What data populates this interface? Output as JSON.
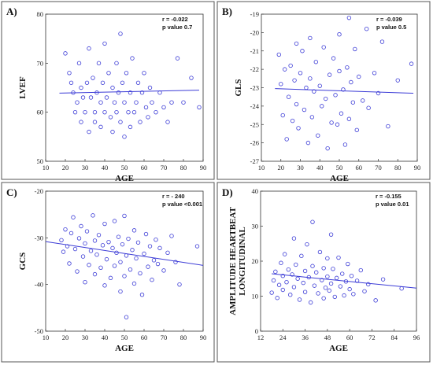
{
  "chart_data": [
    {
      "panel_label": "A)",
      "type": "scatter",
      "xlabel": "AGE",
      "ylabel": "LVEF",
      "xlim": [
        10,
        90
      ],
      "ylim": [
        50,
        80
      ],
      "xticks": [
        10,
        20,
        30,
        40,
        50,
        60,
        70,
        80,
        90
      ],
      "yticks": [
        50,
        60,
        70,
        80
      ],
      "annotation": [
        "r = -0.022",
        "p value 0.7"
      ],
      "trendline": {
        "x": [
          17,
          88
        ],
        "y": [
          63.9,
          64.5
        ]
      },
      "points": [
        [
          20,
          72
        ],
        [
          22,
          68
        ],
        [
          23,
          66
        ],
        [
          24,
          64
        ],
        [
          25,
          60
        ],
        [
          26,
          62
        ],
        [
          27,
          70
        ],
        [
          28,
          65
        ],
        [
          28,
          58
        ],
        [
          29,
          63
        ],
        [
          30,
          60
        ],
        [
          31,
          66
        ],
        [
          32,
          73
        ],
        [
          32,
          56
        ],
        [
          33,
          63
        ],
        [
          34,
          67
        ],
        [
          35,
          60
        ],
        [
          35,
          58
        ],
        [
          36,
          64
        ],
        [
          37,
          70
        ],
        [
          38,
          62
        ],
        [
          38,
          57
        ],
        [
          39,
          66
        ],
        [
          40,
          74
        ],
        [
          40,
          60
        ],
        [
          41,
          63
        ],
        [
          42,
          68
        ],
        [
          43,
          59
        ],
        [
          44,
          65
        ],
        [
          44,
          56
        ],
        [
          45,
          62
        ],
        [
          46,
          70
        ],
        [
          46,
          60
        ],
        [
          47,
          64
        ],
        [
          48,
          76
        ],
        [
          48,
          58
        ],
        [
          49,
          66
        ],
        [
          50,
          62
        ],
        [
          50,
          55
        ],
        [
          51,
          68
        ],
        [
          52,
          60
        ],
        [
          53,
          64
        ],
        [
          53,
          57
        ],
        [
          54,
          71
        ],
        [
          55,
          60
        ],
        [
          56,
          62
        ],
        [
          57,
          66
        ],
        [
          58,
          58
        ],
        [
          59,
          64
        ],
        [
          60,
          68
        ],
        [
          61,
          61
        ],
        [
          62,
          59
        ],
        [
          63,
          65
        ],
        [
          64,
          62
        ],
        [
          66,
          60
        ],
        [
          68,
          64
        ],
        [
          70,
          61
        ],
        [
          72,
          58
        ],
        [
          74,
          62
        ],
        [
          77,
          71
        ],
        [
          80,
          62
        ],
        [
          84,
          67
        ],
        [
          88,
          61
        ]
      ]
    },
    {
      "panel_label": "B)",
      "type": "scatter",
      "xlabel": "AGE",
      "ylabel": "GLS",
      "xlim": [
        10,
        90
      ],
      "ylim": [
        -27,
        -19
      ],
      "xticks": [
        10,
        20,
        30,
        40,
        50,
        60,
        70,
        80,
        90
      ],
      "yticks": [
        -27,
        -26,
        -25,
        -24,
        -23,
        -22,
        -21,
        -20,
        -19
      ],
      "annotation": [
        "r = -0.039",
        "p value 0.5"
      ],
      "trendline": {
        "x": [
          17,
          88
        ],
        "y": [
          -23.05,
          -23.3
        ]
      },
      "points": [
        [
          19,
          -21.2
        ],
        [
          20,
          -22.8
        ],
        [
          21,
          -24.5
        ],
        [
          22,
          -22.0
        ],
        [
          23,
          -25.8
        ],
        [
          24,
          -23.5
        ],
        [
          25,
          -21.8
        ],
        [
          26,
          -24.8
        ],
        [
          27,
          -22.6
        ],
        [
          28,
          -20.6
        ],
        [
          28,
          -23.9
        ],
        [
          29,
          -25.2
        ],
        [
          30,
          -22.2
        ],
        [
          31,
          -21.0
        ],
        [
          32,
          -24.2
        ],
        [
          33,
          -23.0
        ],
        [
          34,
          -26.0
        ],
        [
          35,
          -22.5
        ],
        [
          35,
          -20.3
        ],
        [
          36,
          -24.6
        ],
        [
          37,
          -23.2
        ],
        [
          38,
          -21.6
        ],
        [
          39,
          -25.6
        ],
        [
          40,
          -22.9
        ],
        [
          41,
          -24.0
        ],
        [
          42,
          -20.8
        ],
        [
          43,
          -23.6
        ],
        [
          44,
          -26.3
        ],
        [
          45,
          -22.3
        ],
        [
          46,
          -24.9
        ],
        [
          47,
          -21.4
        ],
        [
          48,
          -23.4
        ],
        [
          49,
          -25.0
        ],
        [
          50,
          -22.1
        ],
        [
          50,
          -20.1
        ],
        [
          51,
          -24.4
        ],
        [
          52,
          -23.1
        ],
        [
          53,
          -26.1
        ],
        [
          54,
          -21.9
        ],
        [
          55,
          -19.2
        ],
        [
          55,
          -24.7
        ],
        [
          56,
          -22.7
        ],
        [
          57,
          -23.8
        ],
        [
          58,
          -20.9
        ],
        [
          59,
          -25.3
        ],
        [
          60,
          -22.4
        ],
        [
          62,
          -23.7
        ],
        [
          64,
          -19.8
        ],
        [
          65,
          -24.1
        ],
        [
          68,
          -22.2
        ],
        [
          70,
          -23.3
        ],
        [
          72,
          -20.5
        ],
        [
          75,
          -25.1
        ],
        [
          80,
          -22.6
        ],
        [
          87,
          -21.7
        ]
      ]
    },
    {
      "panel_label": "C)",
      "type": "scatter",
      "xlabel": "AGE",
      "ylabel": "GCS",
      "xlim": [
        10,
        90
      ],
      "ylim": [
        -50,
        -20
      ],
      "xticks": [
        10,
        20,
        30,
        40,
        50,
        60,
        70,
        80,
        90
      ],
      "yticks": [
        -50,
        -40,
        -30,
        -20
      ],
      "annotation": [
        "r = - 240",
        "p value <0.001"
      ],
      "trendline": {
        "x": [
          10,
          90
        ],
        "y": [
          -30.8,
          -35.9
        ]
      },
      "points": [
        [
          18,
          -30.5
        ],
        [
          19,
          -33.0
        ],
        [
          20,
          -28.2
        ],
        [
          21,
          -31.8
        ],
        [
          22,
          -35.5
        ],
        [
          23,
          -29.0
        ],
        [
          24,
          -25.6
        ],
        [
          25,
          -32.4
        ],
        [
          26,
          -37.2
        ],
        [
          27,
          -30.1
        ],
        [
          28,
          -27.5
        ],
        [
          29,
          -34.0
        ],
        [
          30,
          -31.2
        ],
        [
          30,
          -39.5
        ],
        [
          31,
          -28.6
        ],
        [
          32,
          -35.8
        ],
        [
          33,
          -32.8
        ],
        [
          34,
          -25.2
        ],
        [
          35,
          -30.6
        ],
        [
          35,
          -37.8
        ],
        [
          36,
          -33.6
        ],
        [
          37,
          -29.4
        ],
        [
          38,
          -36.4
        ],
        [
          39,
          -31.6
        ],
        [
          40,
          -27.0
        ],
        [
          40,
          -40.2
        ],
        [
          41,
          -34.6
        ],
        [
          42,
          -30.9
        ],
        [
          43,
          -38.6
        ],
        [
          44,
          -32.2
        ],
        [
          45,
          -26.4
        ],
        [
          45,
          -36.0
        ],
        [
          46,
          -33.2
        ],
        [
          47,
          -29.8
        ],
        [
          48,
          -41.5
        ],
        [
          48,
          -35.2
        ],
        [
          49,
          -31.4
        ],
        [
          50,
          -25.3
        ],
        [
          50,
          -38.2
        ],
        [
          51,
          -47.0
        ],
        [
          51,
          -33.8
        ],
        [
          52,
          -30.2
        ],
        [
          53,
          -36.8
        ],
        [
          54,
          -32.6
        ],
        [
          55,
          -28.4
        ],
        [
          55,
          -39.8
        ],
        [
          56,
          -34.4
        ],
        [
          57,
          -31.0
        ],
        [
          58,
          -37.6
        ],
        [
          59,
          -42.2
        ],
        [
          60,
          -33.4
        ],
        [
          61,
          -29.2
        ],
        [
          62,
          -36.2
        ],
        [
          63,
          -31.8
        ],
        [
          64,
          -39.0
        ],
        [
          65,
          -34.8
        ],
        [
          66,
          -30.4
        ],
        [
          67,
          -35.6
        ],
        [
          68,
          -32.2
        ],
        [
          70,
          -37.0
        ],
        [
          72,
          -33.2
        ],
        [
          74,
          -29.6
        ],
        [
          76,
          -35.2
        ],
        [
          78,
          -40.0
        ],
        [
          87,
          -31.8
        ]
      ]
    },
    {
      "panel_label": "D)",
      "type": "scatter",
      "xlabel": "AGE",
      "ylabel": "AMPLITUDE HEARTBEAT LONGITUDINAL",
      "xlim": [
        12,
        96
      ],
      "ylim": [
        0,
        40
      ],
      "xticks": [
        12,
        24,
        36,
        48,
        60,
        72,
        84,
        96
      ],
      "yticks": [
        0,
        10,
        20,
        30,
        40
      ],
      "annotation": [
        "r = -0.155",
        "p value 0.01"
      ],
      "trendline": {
        "x": [
          18,
          96
        ],
        "y": [
          16.4,
          12.3
        ]
      },
      "points": [
        [
          18,
          11.0
        ],
        [
          19,
          14.5
        ],
        [
          20,
          17.0
        ],
        [
          21,
          9.5
        ],
        [
          22,
          13.2
        ],
        [
          23,
          19.5
        ],
        [
          24,
          15.8
        ],
        [
          24,
          11.8
        ],
        [
          25,
          22.0
        ],
        [
          26,
          14.0
        ],
        [
          27,
          17.6
        ],
        [
          28,
          10.4
        ],
        [
          29,
          16.2
        ],
        [
          30,
          26.5
        ],
        [
          30,
          12.6
        ],
        [
          31,
          19.0
        ],
        [
          32,
          15.0
        ],
        [
          33,
          9.0
        ],
        [
          34,
          21.5
        ],
        [
          35,
          13.8
        ],
        [
          36,
          17.2
        ],
        [
          36,
          11.2
        ],
        [
          37,
          24.8
        ],
        [
          38,
          15.4
        ],
        [
          39,
          8.2
        ],
        [
          40,
          18.6
        ],
        [
          40,
          31.2
        ],
        [
          41,
          13.0
        ],
        [
          42,
          16.8
        ],
        [
          43,
          10.8
        ],
        [
          44,
          22.6
        ],
        [
          45,
          14.6
        ],
        [
          46,
          18.0
        ],
        [
          46,
          9.4
        ],
        [
          47,
          12.4
        ],
        [
          48,
          20.8
        ],
        [
          48,
          15.6
        ],
        [
          49,
          11.6
        ],
        [
          50,
          27.6
        ],
        [
          50,
          13.6
        ],
        [
          51,
          17.8
        ],
        [
          52,
          9.8
        ],
        [
          53,
          15.2
        ],
        [
          54,
          21.0
        ],
        [
          55,
          12.8
        ],
        [
          56,
          16.4
        ],
        [
          57,
          10.2
        ],
        [
          58,
          14.2
        ],
        [
          59,
          19.2
        ],
        [
          60,
          12.0
        ],
        [
          61,
          15.8
        ],
        [
          62,
          10.6
        ],
        [
          64,
          14.4
        ],
        [
          66,
          17.4
        ],
        [
          68,
          11.4
        ],
        [
          70,
          13.4
        ],
        [
          74,
          8.8
        ],
        [
          78,
          14.8
        ],
        [
          88,
          12.2
        ]
      ]
    }
  ]
}
